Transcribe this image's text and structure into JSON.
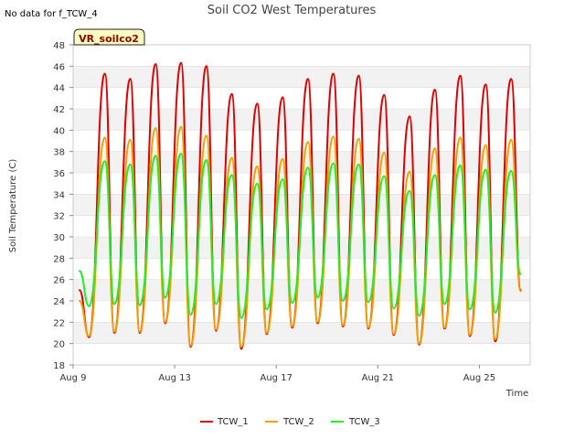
{
  "no_data_note": "No data for f_TCW_4",
  "badge_label": "VR_soilco2",
  "chart_data": {
    "type": "line",
    "title": "Soil CO2 West Temperatures",
    "xlabel": "Time",
    "ylabel": "Soil Temperature (C)",
    "ylim": [
      18,
      48
    ],
    "yticks": [
      18,
      20,
      22,
      24,
      26,
      28,
      30,
      32,
      34,
      36,
      38,
      40,
      42,
      44,
      46,
      48
    ],
    "xlim": [
      "2023-08-09",
      "2023-08-27"
    ],
    "xticks": [
      {
        "date": "2023-08-09",
        "label": "Aug 9"
      },
      {
        "date": "2023-08-13",
        "label": "Aug 13"
      },
      {
        "date": "2023-08-17",
        "label": "Aug 17"
      },
      {
        "date": "2023-08-21",
        "label": "Aug 21"
      },
      {
        "date": "2023-08-25",
        "label": "Aug 25"
      }
    ],
    "grid": "horizontal bands",
    "legend_position": "bottom",
    "series": [
      {
        "name": "TCW_1",
        "color": "#dd0000",
        "x": [
          "2023-08-09 06:00",
          "2023-08-09 15:00",
          "2023-08-10 06:00",
          "2023-08-10 15:00",
          "2023-08-11 06:00",
          "2023-08-11 15:00",
          "2023-08-12 06:00",
          "2023-08-12 15:00",
          "2023-08-13 06:00",
          "2023-08-13 15:00",
          "2023-08-14 06:00",
          "2023-08-14 15:00",
          "2023-08-15 06:00",
          "2023-08-15 15:00",
          "2023-08-16 06:00",
          "2023-08-16 15:00",
          "2023-08-17 06:00",
          "2023-08-17 15:00",
          "2023-08-18 06:00",
          "2023-08-18 15:00",
          "2023-08-19 06:00",
          "2023-08-19 15:00",
          "2023-08-20 06:00",
          "2023-08-20 15:00",
          "2023-08-21 06:00",
          "2023-08-21 15:00",
          "2023-08-22 06:00",
          "2023-08-22 15:00",
          "2023-08-23 06:00",
          "2023-08-23 15:00",
          "2023-08-24 06:00",
          "2023-08-24 15:00",
          "2023-08-25 06:00",
          "2023-08-25 15:00",
          "2023-08-26 06:00",
          "2023-08-26 15:00"
        ],
        "y": [
          25.0,
          20.6,
          45.3,
          21.0,
          44.8,
          21.0,
          46.2,
          21.9,
          46.3,
          19.7,
          46.0,
          21.2,
          43.4,
          19.5,
          42.5,
          20.9,
          43.1,
          21.5,
          44.8,
          21.9,
          45.3,
          21.6,
          45.1,
          21.4,
          43.3,
          20.8,
          41.3,
          19.9,
          43.8,
          21.4,
          45.1,
          20.7,
          44.3,
          20.2,
          44.8,
          25.0
        ]
      },
      {
        "name": "TCW_2",
        "color": "#f0a000",
        "x": [
          "2023-08-09 06:00",
          "2023-08-09 15:00",
          "2023-08-10 06:00",
          "2023-08-10 15:00",
          "2023-08-11 06:00",
          "2023-08-11 15:00",
          "2023-08-12 06:00",
          "2023-08-12 15:00",
          "2023-08-13 06:00",
          "2023-08-13 15:00",
          "2023-08-14 06:00",
          "2023-08-14 15:00",
          "2023-08-15 06:00",
          "2023-08-15 15:00",
          "2023-08-16 06:00",
          "2023-08-16 15:00",
          "2023-08-17 06:00",
          "2023-08-17 15:00",
          "2023-08-18 06:00",
          "2023-08-18 15:00",
          "2023-08-19 06:00",
          "2023-08-19 15:00",
          "2023-08-20 06:00",
          "2023-08-20 15:00",
          "2023-08-21 06:00",
          "2023-08-21 15:00",
          "2023-08-22 06:00",
          "2023-08-22 15:00",
          "2023-08-23 06:00",
          "2023-08-23 15:00",
          "2023-08-24 06:00",
          "2023-08-24 15:00",
          "2023-08-25 06:00",
          "2023-08-25 15:00",
          "2023-08-26 06:00",
          "2023-08-26 15:00"
        ],
        "y": [
          24.0,
          20.7,
          39.3,
          21.1,
          39.1,
          21.1,
          40.2,
          22.0,
          40.3,
          19.8,
          39.5,
          21.3,
          37.4,
          19.7,
          36.6,
          21.0,
          37.3,
          21.6,
          38.9,
          22.0,
          39.4,
          21.7,
          39.2,
          21.5,
          37.9,
          20.9,
          36.1,
          20.0,
          38.3,
          21.5,
          39.3,
          20.8,
          38.6,
          20.4,
          39.1,
          24.9
        ]
      },
      {
        "name": "TCW_3",
        "color": "#22ee22",
        "x": [
          "2023-08-09 06:00",
          "2023-08-09 15:00",
          "2023-08-10 06:00",
          "2023-08-10 15:00",
          "2023-08-11 06:00",
          "2023-08-11 15:00",
          "2023-08-12 06:00",
          "2023-08-12 15:00",
          "2023-08-13 06:00",
          "2023-08-13 15:00",
          "2023-08-14 06:00",
          "2023-08-14 15:00",
          "2023-08-15 06:00",
          "2023-08-15 15:00",
          "2023-08-16 06:00",
          "2023-08-16 15:00",
          "2023-08-17 06:00",
          "2023-08-17 15:00",
          "2023-08-18 06:00",
          "2023-08-18 15:00",
          "2023-08-19 06:00",
          "2023-08-19 15:00",
          "2023-08-20 06:00",
          "2023-08-20 15:00",
          "2023-08-21 06:00",
          "2023-08-21 15:00",
          "2023-08-22 06:00",
          "2023-08-22 15:00",
          "2023-08-23 06:00",
          "2023-08-23 15:00",
          "2023-08-24 06:00",
          "2023-08-24 15:00",
          "2023-08-25 06:00",
          "2023-08-25 15:00",
          "2023-08-26 06:00",
          "2023-08-26 15:00"
        ],
        "y": [
          26.8,
          23.5,
          37.1,
          23.7,
          36.8,
          23.6,
          37.6,
          24.3,
          37.8,
          22.7,
          37.2,
          23.7,
          35.8,
          22.4,
          35.0,
          23.2,
          35.4,
          23.8,
          36.5,
          24.3,
          36.9,
          24.0,
          36.8,
          23.9,
          35.7,
          23.3,
          34.3,
          22.6,
          35.8,
          23.7,
          36.7,
          23.2,
          36.3,
          22.9,
          36.2,
          26.5
        ]
      }
    ]
  }
}
